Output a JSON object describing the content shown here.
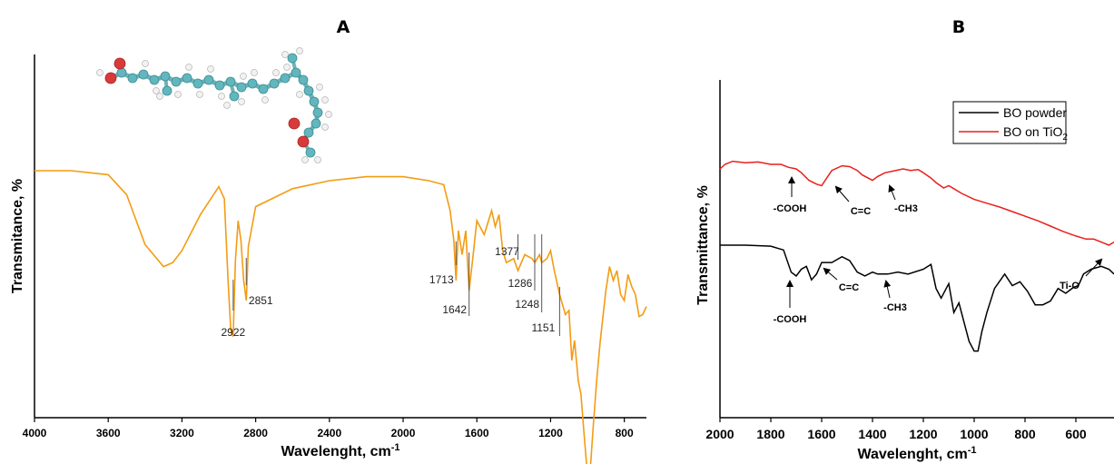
{
  "chart_data": [
    {
      "panel_label": "A",
      "type": "line",
      "xlabel": "Wavelenght, cm",
      "xlabel_sup": "-1",
      "ylabel": "Transmitance, %",
      "xlim": [
        4000,
        680
      ],
      "x_ticks": [
        "4000",
        "3600",
        "3200",
        "2800",
        "2400",
        "2000",
        "1600",
        "1200",
        "800"
      ],
      "line_color": "#f39c12",
      "grid": false,
      "inset": "molecule structure (ball-and-stick)",
      "series": [
        {
          "x": [
            4000,
            3800,
            3600,
            3500,
            3400,
            3300,
            3250,
            3200,
            3100,
            3000,
            2970,
            2950,
            2935,
            2922,
            2910,
            2895,
            2880,
            2865,
            2851,
            2840,
            2800,
            2600,
            2400,
            2200,
            2000,
            1860,
            1780,
            1745,
            1725,
            1713,
            1700,
            1680,
            1660,
            1642,
            1620,
            1600,
            1560,
            1520,
            1500,
            1480,
            1460,
            1440,
            1400,
            1377,
            1340,
            1300,
            1286,
            1260,
            1248,
            1220,
            1200,
            1180,
            1151,
            1120,
            1100,
            1085,
            1070,
            1050,
            1035,
            1020,
            1000,
            985,
            970,
            950,
            930,
            900,
            880,
            860,
            840,
            820,
            800,
            780,
            760,
            740,
            720,
            700,
            680
          ],
          "y": [
            0.0,
            0.0,
            -0.02,
            -0.12,
            -0.37,
            -0.48,
            -0.46,
            -0.4,
            -0.22,
            -0.08,
            -0.14,
            -0.55,
            -0.8,
            -0.83,
            -0.45,
            -0.25,
            -0.35,
            -0.55,
            -0.65,
            -0.38,
            -0.18,
            -0.09,
            -0.05,
            -0.03,
            -0.03,
            -0.05,
            -0.07,
            -0.2,
            -0.35,
            -0.55,
            -0.3,
            -0.42,
            -0.3,
            -0.6,
            -0.42,
            -0.25,
            -0.32,
            -0.2,
            -0.28,
            -0.22,
            -0.4,
            -0.46,
            -0.44,
            -0.5,
            -0.42,
            -0.44,
            -0.46,
            -0.42,
            -0.46,
            -0.44,
            -0.4,
            -0.5,
            -0.62,
            -0.72,
            -0.7,
            -0.95,
            -0.85,
            -1.05,
            -1.12,
            -1.3,
            -1.52,
            -1.5,
            -1.3,
            -1.05,
            -0.85,
            -0.6,
            -0.48,
            -0.55,
            -0.5,
            -0.62,
            -0.65,
            -0.52,
            -0.58,
            -0.62,
            -0.73,
            -0.72,
            -0.68
          ]
        }
      ],
      "peak_labels": [
        {
          "x": 2922,
          "label": "2922"
        },
        {
          "x": 2851,
          "label": "2851"
        },
        {
          "x": 1713,
          "label": "1713"
        },
        {
          "x": 1642,
          "label": "1642"
        },
        {
          "x": 1377,
          "label": "1377"
        },
        {
          "x": 1286,
          "label": "1286"
        },
        {
          "x": 1248,
          "label": "1248"
        },
        {
          "x": 1151,
          "label": "1151"
        }
      ]
    },
    {
      "panel_label": "B",
      "type": "line",
      "xlabel": "Wavelenght, cm",
      "xlabel_sup": "-1",
      "ylabel": "Transmittance, %",
      "xlim": [
        2000,
        450
      ],
      "x_ticks": [
        "2000",
        "1800",
        "1600",
        "1400",
        "1200",
        "1000",
        "800",
        "600"
      ],
      "grid": false,
      "legend_position": "top-right",
      "series": [
        {
          "name": "BO powder",
          "color": "#000000",
          "x": [
            2000,
            1900,
            1800,
            1750,
            1720,
            1700,
            1680,
            1660,
            1640,
            1620,
            1600,
            1560,
            1520,
            1490,
            1460,
            1430,
            1400,
            1380,
            1340,
            1300,
            1260,
            1200,
            1170,
            1150,
            1130,
            1100,
            1080,
            1060,
            1040,
            1020,
            1000,
            985,
            970,
            950,
            920,
            880,
            850,
            820,
            790,
            760,
            730,
            700,
            670,
            640,
            610,
            590,
            570,
            540,
            500,
            470,
            450
          ],
          "y": [
            0.0,
            0.0,
            -0.01,
            -0.05,
            -0.28,
            -0.32,
            -0.25,
            -0.22,
            -0.36,
            -0.3,
            -0.18,
            -0.18,
            -0.12,
            -0.16,
            -0.28,
            -0.32,
            -0.28,
            -0.3,
            -0.3,
            -0.28,
            -0.3,
            -0.25,
            -0.2,
            -0.45,
            -0.55,
            -0.4,
            -0.7,
            -0.6,
            -0.8,
            -1.0,
            -1.1,
            -1.1,
            -0.9,
            -0.7,
            -0.45,
            -0.3,
            -0.42,
            -0.38,
            -0.48,
            -0.62,
            -0.62,
            -0.58,
            -0.45,
            -0.5,
            -0.44,
            -0.42,
            -0.3,
            -0.25,
            -0.22,
            -0.25,
            -0.3
          ]
        },
        {
          "name": "BO on TiO2",
          "color": "#e8201c",
          "x": [
            2000,
            1980,
            1950,
            1900,
            1850,
            1800,
            1760,
            1730,
            1700,
            1680,
            1650,
            1620,
            1600,
            1580,
            1560,
            1520,
            1490,
            1460,
            1440,
            1400,
            1380,
            1350,
            1320,
            1280,
            1250,
            1220,
            1200,
            1170,
            1150,
            1120,
            1100,
            1080,
            1050,
            1000,
            950,
            900,
            850,
            800,
            750,
            700,
            650,
            600,
            560,
            530,
            500,
            470,
            450
          ],
          "y": [
            0.0,
            0.06,
            0.1,
            0.08,
            0.09,
            0.06,
            0.06,
            0.02,
            0.0,
            -0.05,
            -0.15,
            -0.2,
            -0.22,
            -0.12,
            -0.02,
            0.04,
            0.03,
            -0.02,
            -0.08,
            -0.15,
            -0.1,
            -0.05,
            -0.03,
            0.0,
            -0.02,
            -0.01,
            -0.05,
            -0.12,
            -0.18,
            -0.25,
            -0.22,
            -0.26,
            -0.32,
            -0.4,
            -0.45,
            -0.5,
            -0.56,
            -0.62,
            -0.68,
            -0.75,
            -0.82,
            -0.88,
            -0.92,
            -0.92,
            -0.96,
            -1.0,
            -0.96
          ]
        }
      ],
      "annotations": [
        {
          "text": "-COOH",
          "series": "BO on TiO2",
          "x": 1720
        },
        {
          "text": "C=C",
          "series": "BO on TiO2",
          "x": 1600
        },
        {
          "text": "-CH3",
          "series": "BO on TiO2",
          "x": 1380
        },
        {
          "text": "Ti-O",
          "series": "BO on TiO2",
          "x": 480
        },
        {
          "text": "-COOH",
          "series": "BO powder",
          "x": 1720
        },
        {
          "text": "C=C",
          "series": "BO powder",
          "x": 1620
        },
        {
          "text": "-CH3",
          "series": "BO powder",
          "x": 1370
        }
      ],
      "legend": [
        {
          "name": "BO powder",
          "label": "BO on TiO",
          "color": "#000000"
        },
        {
          "name": "BO on TiO2",
          "label": "BO on TiO",
          "color": "#e8201c"
        }
      ],
      "legend_labels": [
        "BO powder",
        "BO on TiO"
      ],
      "legend_sub": "2"
    }
  ]
}
